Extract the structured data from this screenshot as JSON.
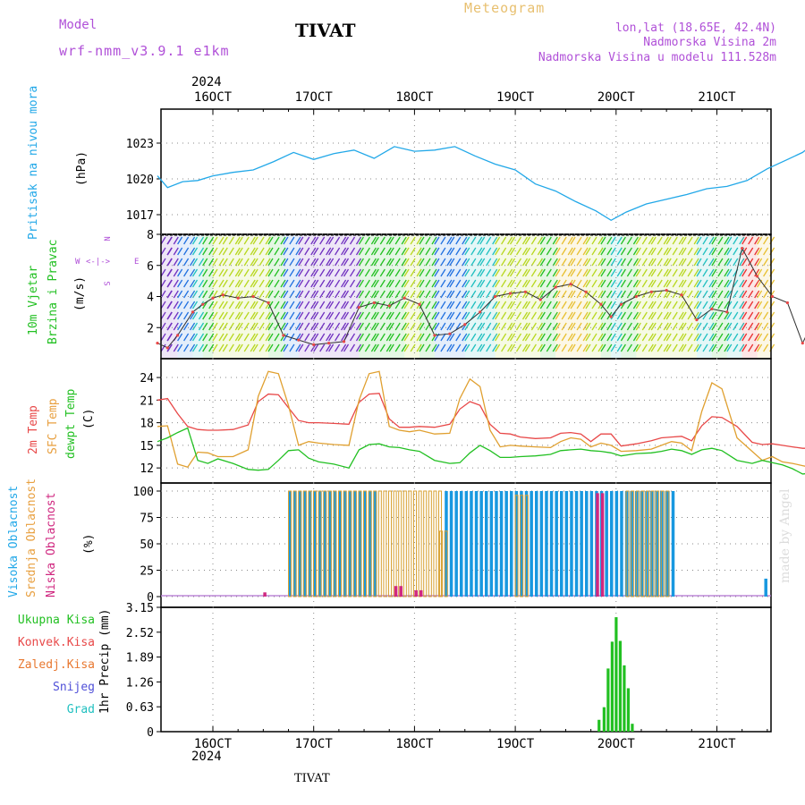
{
  "header": {
    "model_label": "Model",
    "model_name": "wrf-nmm_v3.9.1 e1km",
    "title": "TIVAT",
    "meteogram": "Meteogram",
    "lonlat": "lon,lat (18.65E, 42.4N)",
    "altitude": "Nadmorska Visina 2m",
    "model_altitude": "Nadmorska Visina u modelu 111.528m",
    "watermark": "made by Angel",
    "footer": "TIVAT"
  },
  "colors": {
    "pressure": "#22a8e8",
    "temp2m": "#e84848",
    "sfc": "#e0a030",
    "dew": "#22c022",
    "high": "#1898e0",
    "mid": "#d8a030",
    "low": "#d02880",
    "rain": "#22c022",
    "title_purple": "#b050d8",
    "orange": "#e8c070"
  },
  "axes": {
    "year_top": "2024",
    "year_bottom": "2024",
    "dates": [
      "16OCT",
      "17OCT",
      "18OCT",
      "19OCT",
      "20OCT",
      "21OCT"
    ]
  },
  "panel_labels": {
    "pressure": {
      "lines": [
        "Pritisak na nivou mora"
      ],
      "unit": "(hPa)"
    },
    "wind": {
      "lines": [
        "10m Vjetar",
        "Brzina i Pravac"
      ],
      "unit": "(m/s)"
    },
    "temp": {
      "lines": [
        "2m Temp",
        "SFC Temp",
        "dewpt Temp"
      ],
      "unit": "(C)"
    },
    "cloud": {
      "lines": [
        "Visoka Oblacnost",
        "Srednja Oblacnost",
        "Niska Oblacnost"
      ],
      "unit": "(%)"
    },
    "precip_legend": [
      "Ukupna Kisa",
      "Konvek.Kisa",
      "Zaledj.Kisa",
      "Snijeg",
      "Grad"
    ],
    "precip_unit": "1hr Precip (mm)",
    "compass": {
      "n": "N",
      "s": "S",
      "w": "W",
      "e": "E"
    }
  },
  "chart_data": [
    {
      "type": "line",
      "title": "Pritisak na nivou mora",
      "ylabel": "(hPa)",
      "yticks": [
        1017,
        1020,
        1023
      ],
      "ylim": [
        1015,
        1025.7
      ],
      "x_unit": "days from 16OCT 00Z",
      "x": [
        -0.55,
        -0.45,
        -0.3,
        -0.15,
        0,
        0.2,
        0.4,
        0.6,
        0.8,
        1.0,
        1.2,
        1.4,
        1.6,
        1.8,
        2.0,
        2.2,
        2.4,
        2.6,
        2.8,
        3.0,
        3.2,
        3.4,
        3.6,
        3.8,
        3.95,
        4.1,
        4.3,
        4.5,
        4.7,
        4.9,
        5.1,
        5.3,
        5.5,
        5.7,
        5.85,
        6.0,
        6.2,
        6.4,
        6.55
      ],
      "series": [
        {
          "values": [
            1020.0,
            1019.0,
            1019.5,
            1019.6,
            1020.0,
            1020.3,
            1020.5,
            1021.2,
            1022.0,
            1021.4,
            1021.9,
            1022.2,
            1021.5,
            1022.5,
            1022.1,
            1022.2,
            1022.5,
            1021.7,
            1021.0,
            1020.5,
            1019.3,
            1018.7,
            1017.8,
            1017.0,
            1016.2,
            1016.9,
            1017.6,
            1018.0,
            1018.4,
            1018.9,
            1019.1,
            1019.6,
            1020.6,
            1021.4,
            1022.0,
            1023.0,
            1024.0,
            1024.7,
            1023.7
          ]
        }
      ]
    },
    {
      "type": "line",
      "title": "10m Vjetar Brzina i Pravac",
      "ylabel": "(m/s)",
      "yticks": [
        2,
        4,
        6,
        8
      ],
      "ylim": [
        0,
        8
      ],
      "x_unit": "days from 16OCT 00Z",
      "x": [
        -0.55,
        -0.45,
        -0.35,
        -0.2,
        -0.1,
        0.0,
        0.1,
        0.25,
        0.4,
        0.55,
        0.7,
        0.85,
        1.0,
        1.15,
        1.3,
        1.45,
        1.6,
        1.75,
        1.9,
        2.05,
        2.2,
        2.35,
        2.5,
        2.65,
        2.8,
        2.95,
        3.1,
        3.25,
        3.4,
        3.55,
        3.7,
        3.85,
        3.95,
        4.05,
        4.2,
        4.35,
        4.5,
        4.65,
        4.8,
        4.95,
        5.1,
        5.25,
        5.4,
        5.55,
        5.7,
        5.85,
        6.0,
        6.15,
        6.3,
        6.45,
        6.55
      ],
      "series": [
        {
          "values": [
            1.0,
            0.7,
            1.5,
            3.0,
            3.5,
            3.9,
            4.1,
            3.9,
            4.0,
            3.6,
            1.5,
            1.2,
            0.9,
            1.0,
            1.1,
            3.3,
            3.6,
            3.4,
            3.9,
            3.5,
            1.5,
            1.6,
            2.2,
            3.0,
            4.0,
            4.2,
            4.3,
            3.8,
            4.6,
            4.8,
            4.3,
            3.5,
            2.7,
            3.5,
            4.0,
            4.3,
            4.4,
            4.1,
            2.5,
            3.2,
            3.0,
            7.1,
            5.3,
            4.0,
            3.6,
            1.0,
            3.0,
            3.5,
            3.8,
            3.9,
            1.2
          ]
        }
      ]
    },
    {
      "type": "line",
      "title": "2m Temp / SFC Temp / dewpt Temp",
      "ylabel": "(C)",
      "yticks": [
        12,
        15,
        18,
        21,
        24
      ],
      "ylim": [
        10,
        26.5
      ],
      "x_unit": "days from 16OCT 00Z",
      "x": [
        -0.55,
        -0.45,
        -0.35,
        -0.25,
        -0.15,
        -0.05,
        0.05,
        0.2,
        0.35,
        0.45,
        0.55,
        0.65,
        0.75,
        0.85,
        0.95,
        1.05,
        1.2,
        1.35,
        1.45,
        1.55,
        1.65,
        1.75,
        1.85,
        1.95,
        2.05,
        2.2,
        2.35,
        2.45,
        2.55,
        2.65,
        2.75,
        2.85,
        2.95,
        3.05,
        3.2,
        3.35,
        3.45,
        3.55,
        3.65,
        3.75,
        3.85,
        3.95,
        4.05,
        4.2,
        4.35,
        4.45,
        4.55,
        4.65,
        4.75,
        4.85,
        4.95,
        5.05,
        5.2,
        5.35,
        5.45,
        5.55,
        5.65,
        5.75,
        5.85,
        5.95,
        6.05,
        6.2,
        6.35,
        6.45,
        6.55
      ],
      "series": [
        {
          "name": "2m Temp",
          "values": [
            21.0,
            21.2,
            19.2,
            17.5,
            17.1,
            17.0,
            17.0,
            17.1,
            17.7,
            20.8,
            21.8,
            21.7,
            20.0,
            18.3,
            18.0,
            18.0,
            17.9,
            17.8,
            20.7,
            21.8,
            21.9,
            18.5,
            17.4,
            17.4,
            17.5,
            17.4,
            17.8,
            19.8,
            20.8,
            20.3,
            17.8,
            16.6,
            16.5,
            16.1,
            15.9,
            16.0,
            16.6,
            16.7,
            16.5,
            15.5,
            16.5,
            16.5,
            14.9,
            15.2,
            15.6,
            16.0,
            16.1,
            16.2,
            15.6,
            17.6,
            18.8,
            18.7,
            17.5,
            15.4,
            15.1,
            15.2,
            15.0,
            14.8,
            14.6,
            14.6,
            17.5,
            18.7,
            19.3,
            19.2,
            19.1
          ]
        },
        {
          "name": "SFC Temp",
          "values": [
            17.5,
            17.6,
            12.5,
            12.1,
            14.1,
            14.0,
            13.5,
            13.5,
            14.4,
            21.5,
            24.8,
            24.5,
            20.3,
            15.0,
            15.5,
            15.3,
            15.1,
            15.0,
            21.0,
            24.5,
            24.8,
            17.5,
            17.0,
            16.8,
            17.0,
            16.5,
            16.6,
            21.2,
            23.8,
            22.8,
            17.0,
            14.8,
            15.0,
            14.9,
            14.8,
            14.7,
            15.5,
            16.0,
            15.8,
            14.8,
            15.3,
            15.0,
            14.2,
            14.3,
            14.5,
            15.0,
            15.5,
            15.3,
            14.3,
            19.5,
            23.3,
            22.5,
            16.0,
            14.2,
            13.0,
            13.5,
            12.8,
            12.6,
            12.3,
            12.0,
            17.5,
            22.0,
            23.2,
            23.0,
            22.8
          ]
        },
        {
          "name": "dewpt Temp",
          "values": [
            15.5,
            16.0,
            16.7,
            17.3,
            13.0,
            12.6,
            13.2,
            12.6,
            11.8,
            11.7,
            11.8,
            13.0,
            14.3,
            14.4,
            13.3,
            12.8,
            12.5,
            12.0,
            14.4,
            15.1,
            15.2,
            14.8,
            14.7,
            14.4,
            14.2,
            13.0,
            12.6,
            12.7,
            14.0,
            15.0,
            14.3,
            13.4,
            13.4,
            13.5,
            13.6,
            13.8,
            14.3,
            14.4,
            14.5,
            14.3,
            14.2,
            14.0,
            13.6,
            13.9,
            14.0,
            14.2,
            14.5,
            14.3,
            13.8,
            14.4,
            14.6,
            14.3,
            13.0,
            12.6,
            13.0,
            12.7,
            12.4,
            11.9,
            11.2,
            11.3,
            11.5,
            11.8,
            11.2,
            12.5,
            13.5
          ]
        }
      ]
    },
    {
      "type": "bar",
      "title": "Visoka / Srednja / Niska Oblacnost",
      "ylabel": "(%)",
      "yticks": [
        0,
        25,
        50,
        75,
        100
      ],
      "ylim": [
        0,
        100
      ],
      "x_unit": "days from 16OCT 00Z",
      "series": [
        {
          "name": "Visoka Oblacnost",
          "segments": [
            [
              0.75,
              1.6,
              100
            ],
            [
              2.3,
              4.5,
              100
            ],
            [
              4.5,
              4.55,
              100
            ],
            [
              5.47,
              5.5,
              17
            ],
            [
              6.35,
              6.55,
              100
            ]
          ]
        },
        {
          "name": "Srednja Oblacnost",
          "segments": [
            [
              0.75,
              2.25,
              100
            ],
            [
              2.25,
              2.3,
              62
            ],
            [
              3.0,
              3.1,
              96
            ],
            [
              4.1,
              4.5,
              100
            ]
          ]
        },
        {
          "name": "Niska Oblacnost",
          "segments": [
            [
              0.5,
              0.52,
              4
            ],
            [
              1.8,
              1.85,
              10
            ],
            [
              2.0,
              2.05,
              6
            ],
            [
              3.8,
              3.85,
              98
            ]
          ]
        }
      ]
    },
    {
      "type": "bar",
      "title": "1hr Precip",
      "ylabel": "1hr Precip (mm)",
      "yticks": [
        0,
        0.63,
        1.26,
        1.89,
        2.52,
        3.15
      ],
      "ylim": [
        0,
        3.15
      ],
      "x_unit": "days from 16OCT 00Z",
      "series": [
        {
          "name": "Ukupna Kisa",
          "x": [
            3.83,
            3.88,
            3.92,
            3.96,
            4.0,
            4.04,
            4.08,
            4.12,
            4.16
          ],
          "values": [
            0.3,
            0.62,
            1.6,
            2.28,
            2.9,
            2.3,
            1.68,
            1.1,
            0.2
          ]
        }
      ]
    }
  ]
}
